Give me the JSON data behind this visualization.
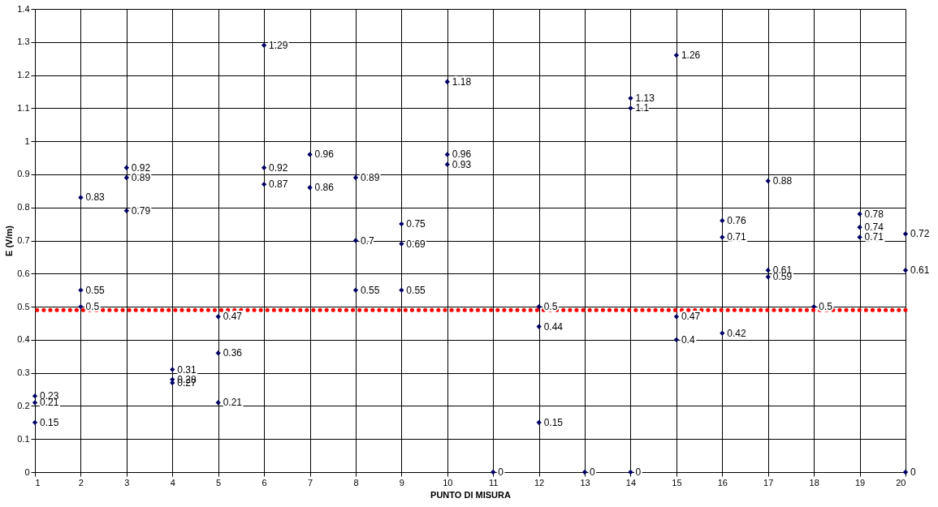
{
  "chart_data": {
    "type": "scatter",
    "xlabel": "PUNTO DI MISURA",
    "ylabel": "E (V/m)",
    "x": [
      1,
      1,
      1,
      2,
      2,
      2,
      3,
      3,
      3,
      4,
      4,
      4,
      5,
      5,
      5,
      6,
      6,
      6,
      7,
      7,
      8,
      8,
      8,
      9,
      9,
      9,
      10,
      10,
      10,
      11,
      12,
      12,
      12,
      13,
      14,
      14,
      14,
      15,
      15,
      15,
      16,
      16,
      16,
      17,
      17,
      17,
      18,
      19,
      19,
      19,
      20,
      20,
      20
    ],
    "values": [
      0.23,
      0.21,
      0.15,
      0.83,
      0.55,
      0.5,
      0.92,
      0.89,
      0.79,
      0.31,
      0.28,
      0.27,
      0.47,
      0.36,
      0.21,
      1.29,
      0.92,
      0.87,
      0.96,
      0.86,
      0.89,
      0.7,
      0.55,
      0.75,
      0.69,
      0.55,
      1.18,
      0.96,
      0.93,
      0,
      0.5,
      0.44,
      0.15,
      0,
      1.13,
      1.1,
      0,
      1.26,
      0.47,
      0.4,
      0.76,
      0.71,
      0.42,
      0.88,
      0.61,
      0.59,
      0.5,
      0.78,
      0.74,
      0.71,
      0.72,
      0.61,
      0
    ],
    "color": "#000066",
    "marker": "diamond",
    "data_labels": true,
    "xlim": [
      1,
      20
    ],
    "xticks": [
      1,
      2,
      3,
      4,
      5,
      6,
      7,
      8,
      9,
      10,
      11,
      12,
      13,
      14,
      15,
      16,
      17,
      18,
      19,
      20
    ],
    "ylim": [
      0,
      1.4
    ],
    "yticks": [
      0,
      0.1,
      0.2,
      0.3,
      0.4,
      0.5,
      0.6,
      0.7,
      0.8,
      0.9,
      1,
      1.1,
      1.2,
      1.3,
      1.4
    ],
    "grid": true,
    "ref_lines": [
      {
        "axis": "y",
        "value": 0.49,
        "color": "#ff0000",
        "line_style": "dotted"
      }
    ]
  }
}
